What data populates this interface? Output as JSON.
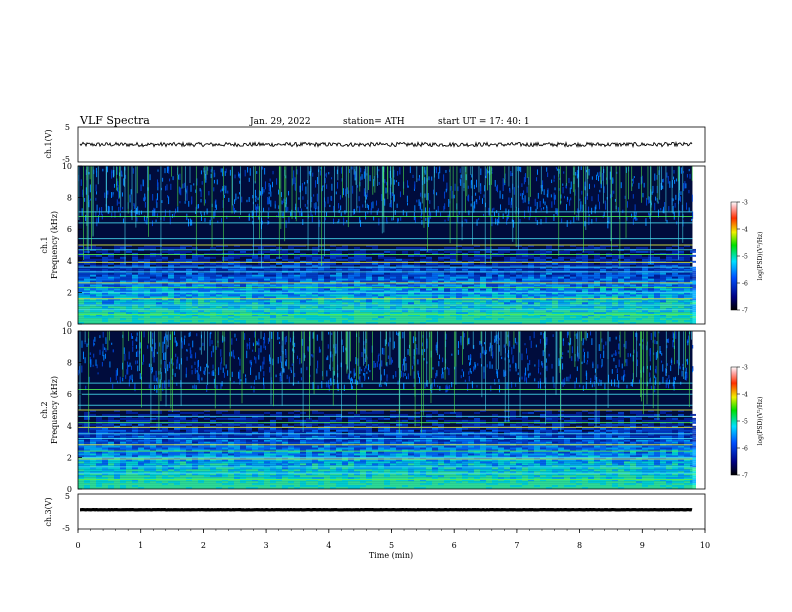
{
  "header": {
    "title": "VLF  Spectra",
    "date": "Jan. 29, 2022",
    "station": "station= ATH",
    "start": "start  UT  =   17: 40: 1"
  },
  "colors": {
    "spectro_bg": "#000c3c",
    "line_cyan": "#46dcf0",
    "line_green": "#50f050",
    "line_yellow": "#e6f03c",
    "waveform": "#000000"
  },
  "chart_data": [
    {
      "type": "line",
      "name": "ch1-waveform",
      "ylabel": "ch.1(V)",
      "ylim": [
        -5,
        5
      ],
      "yticks": [
        "5",
        "-5"
      ],
      "xlim": [
        0,
        10
      ],
      "level": 0.0,
      "noise_amplitude": 0.6
    },
    {
      "type": "heatmap",
      "name": "ch1-spectrogram",
      "ylabel": "ch.1\nFrequency  (kHz)",
      "ylim": [
        0,
        10
      ],
      "yticks": [
        "0",
        "2",
        "4",
        "6",
        "8",
        "10"
      ],
      "xlim": [
        0,
        9.8
      ],
      "colorbar": {
        "label": "log(PSD)(V²/Hz)",
        "range": [
          -7,
          -3
        ],
        "ticks": [
          "-3",
          "-4",
          "-5",
          "-6",
          "-7"
        ]
      },
      "horizontal_lines_khz": [
        0.6,
        0.9,
        1.2,
        1.6,
        2.0,
        2.3,
        2.6,
        3.3,
        3.6,
        3.9,
        4.4,
        4.7,
        5.0,
        5.4,
        6.4,
        6.8,
        7.1
      ],
      "spike_rows": [
        [
          0,
          6.5
        ],
        [
          3.6,
          3.6
        ],
        [
          9.5,
          10
        ]
      ]
    },
    {
      "type": "heatmap",
      "name": "ch2-spectrogram",
      "ylabel": "ch.2\nFrequency  (kHz)",
      "ylim": [
        0,
        10
      ],
      "yticks": [
        "0",
        "2",
        "4",
        "6",
        "8",
        "10"
      ],
      "xlim": [
        0,
        9.8
      ],
      "colorbar": {
        "label": "log(PSD)(V²/Hz)",
        "range": [
          -7,
          -3
        ],
        "ticks": [
          "-3",
          "-4",
          "-5",
          "-6",
          "-7"
        ]
      },
      "horizontal_lines_khz": [
        0.6,
        1.0,
        1.4,
        1.9,
        2.0,
        2.4,
        2.8,
        3.2,
        3.5,
        3.9,
        4.2,
        4.6,
        5.0,
        5.3,
        6.0,
        6.3,
        6.7
      ],
      "spike_rows": [
        [
          0,
          6.5
        ],
        [
          9.5,
          10
        ]
      ]
    },
    {
      "type": "line",
      "name": "ch3-waveform",
      "ylabel": "ch.3(V)",
      "ylim": [
        -5,
        5
      ],
      "yticks": [
        "5",
        "-5"
      ],
      "xlim": [
        0,
        10
      ],
      "level": 0.5,
      "noise_amplitude": 0.05
    }
  ],
  "xaxis": {
    "label": "Time  (min)",
    "ticks": [
      "0",
      "1",
      "2",
      "3",
      "4",
      "5",
      "6",
      "7",
      "8",
      "9",
      "10"
    ],
    "range": [
      0,
      10
    ]
  }
}
